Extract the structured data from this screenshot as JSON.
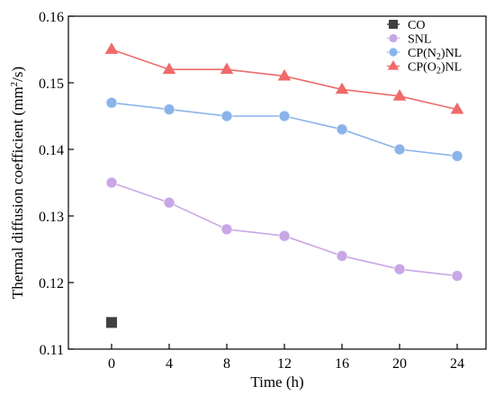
{
  "chart_data": {
    "type": "line",
    "xlabel": "Time (h)",
    "ylabel": "Thermal diffusion coefficient (mm²/s)",
    "ylabel_main": "Thermal diffusion coefficient (mm",
    "ylabel_sup": "2",
    "ylabel_end": "/s)",
    "xlim": [
      -3,
      26
    ],
    "ylim": [
      0.11,
      0.16
    ],
    "xticks": [
      0,
      4,
      8,
      12,
      16,
      20,
      24
    ],
    "yticks": [
      0.11,
      0.12,
      0.13,
      0.14,
      0.15,
      0.16
    ],
    "xtick_labels": [
      "0",
      "4",
      "8",
      "12",
      "16",
      "20",
      "24"
    ],
    "ytick_labels": [
      "0.11",
      "0.12",
      "0.13",
      "0.14",
      "0.15",
      "0.16"
    ],
    "grid": false,
    "legend_position": "top-right",
    "series": [
      {
        "name": "CO",
        "legend_parts": [
          "CO"
        ],
        "marker": "square",
        "color": "#404040",
        "line": false,
        "x": [
          0
        ],
        "y": [
          0.114
        ]
      },
      {
        "name": "SNL",
        "legend_parts": [
          "SNL"
        ],
        "marker": "circle",
        "color": "#c9a7e6",
        "line": true,
        "x": [
          0,
          4,
          8,
          12,
          16,
          20,
          24
        ],
        "y": [
          0.135,
          0.132,
          0.128,
          0.127,
          0.124,
          0.122,
          0.121
        ]
      },
      {
        "name": "CP(N2)NL",
        "legend_parts": [
          "CP(N",
          "2",
          ")NL"
        ],
        "marker": "circle",
        "color": "#8ab4ea",
        "line": true,
        "x": [
          0,
          4,
          8,
          12,
          16,
          20,
          24
        ],
        "y": [
          0.147,
          0.146,
          0.145,
          0.145,
          0.143,
          0.14,
          0.139
        ]
      },
      {
        "name": "CP(O2)NL",
        "legend_parts": [
          "CP(O",
          "2",
          ")NL"
        ],
        "marker": "triangle",
        "color": "#f06a6a",
        "line": true,
        "x": [
          0,
          4,
          8,
          12,
          16,
          20,
          24
        ],
        "y": [
          0.155,
          0.152,
          0.152,
          0.151,
          0.149,
          0.148,
          0.146
        ]
      }
    ]
  }
}
